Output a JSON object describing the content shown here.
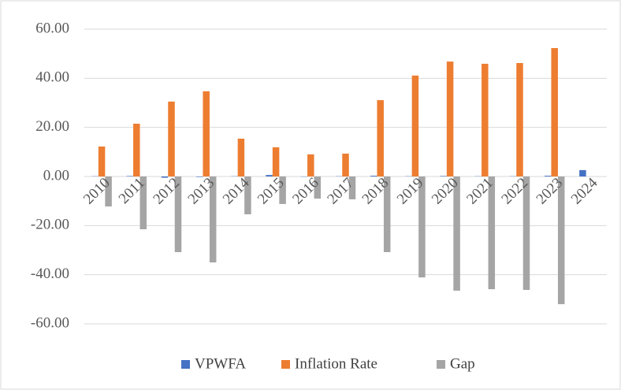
{
  "chart_data": {
    "type": "bar",
    "categories": [
      "2010",
      "2011",
      "2012",
      "2013",
      "2014",
      "2015",
      "2016",
      "2017",
      "2018",
      "2019",
      "2020",
      "2021",
      "2022",
      "2023",
      "2024"
    ],
    "series": [
      {
        "name": "VPWFA",
        "color": "#4472c4",
        "values": [
          0.1,
          0.2,
          -0.5,
          -0.2,
          0.1,
          0.6,
          -0.1,
          0.1,
          0.3,
          0.1,
          0.2,
          0.1,
          0.1,
          0.3,
          2.6
        ]
      },
      {
        "name": "Inflation Rate",
        "color": "#ed7d31",
        "values": [
          12.2,
          21.5,
          30.5,
          34.7,
          15.4,
          11.9,
          9.0,
          9.3,
          31.1,
          41.1,
          46.8,
          45.9,
          46.2,
          52.3,
          0
        ]
      },
      {
        "name": "Gap",
        "color": "#a5a5a5",
        "values": [
          -12.2,
          -21.5,
          -30.8,
          -35.0,
          -15.4,
          -11.2,
          -9.0,
          -9.3,
          -30.8,
          -41.1,
          -46.5,
          -45.9,
          -46.2,
          -52.0,
          0
        ]
      }
    ],
    "ylim": [
      -60,
      60
    ],
    "yticks": [
      {
        "value": -60,
        "label": "-60.00"
      },
      {
        "value": -40,
        "label": "-40.00"
      },
      {
        "value": -20,
        "label": "-20.00"
      },
      {
        "value": 0,
        "label": "0.00"
      },
      {
        "value": 20,
        "label": "20.00"
      },
      {
        "value": 40,
        "label": "40.00"
      },
      {
        "value": 60,
        "label": "60.00"
      }
    ],
    "grid": true,
    "legend": "bottom"
  }
}
